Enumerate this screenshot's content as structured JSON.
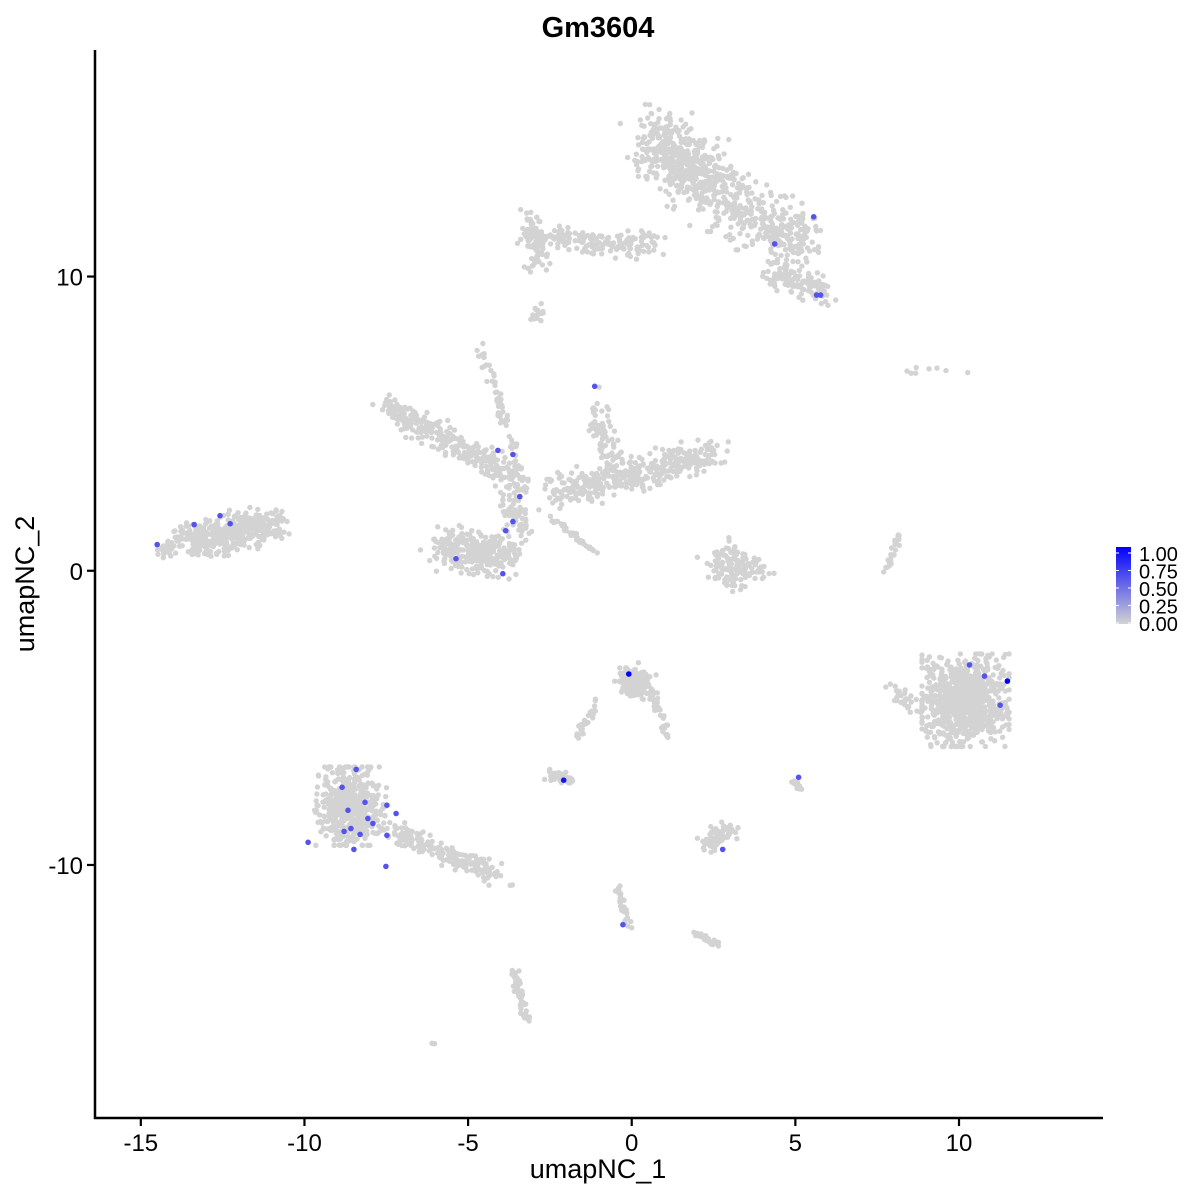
{
  "chart_data": {
    "type": "scatter",
    "title": "Gm3604",
    "xlabel": "umapNC_1",
    "ylabel": "umapNC_2",
    "xlim": [
      -16.4,
      14.4
    ],
    "ylim": [
      -18.6,
      17.7
    ],
    "xticks": [
      -15,
      -10,
      -5,
      0,
      5,
      10
    ],
    "yticks": [
      -10,
      0,
      10
    ],
    "xtick_labels": [
      "-15",
      "-10",
      "-5",
      "0",
      "5",
      "10"
    ],
    "ytick_labels": [
      "-10",
      "0",
      "10"
    ],
    "grid": false,
    "color_low": "#d3d3d3",
    "color_high": "#0000ff",
    "legend": {
      "placement": "right",
      "labels": [
        "1.00",
        "0.75",
        "0.50",
        "0.25",
        "0.00"
      ],
      "values": [
        1,
        0.75,
        0.5,
        0.25,
        0
      ]
    },
    "background_clusters": [
      {
        "from": [
          0.7,
          14.8
        ],
        "to": [
          2.6,
          12.8
        ],
        "spread": [
          0.9,
          1.0
        ],
        "n": 520
      },
      {
        "from": [
          3.0,
          12.5
        ],
        "to": [
          5.4,
          11.0
        ],
        "spread": [
          0.7,
          0.9
        ],
        "n": 260
      },
      {
        "from": [
          4.3,
          10.2
        ],
        "to": [
          5.9,
          9.5
        ],
        "spread": [
          0.5,
          0.5
        ],
        "n": 120
      },
      {
        "from": [
          -3.3,
          11.4
        ],
        "to": [
          0.8,
          11.0
        ],
        "spread": [
          0.35,
          0.4
        ],
        "n": 170
      },
      {
        "from": [
          -3.2,
          11.9
        ],
        "to": [
          -2.8,
          10.4
        ],
        "spread": [
          0.3,
          0.5
        ],
        "n": 70
      },
      {
        "from": [
          -3.0,
          8.9
        ],
        "to": [
          -2.8,
          8.7
        ],
        "spread": [
          0.2,
          0.3
        ],
        "n": 15
      },
      {
        "from": [
          -7.6,
          5.6
        ],
        "to": [
          -3.2,
          3.0
        ],
        "spread": [
          0.4,
          0.4
        ],
        "n": 330
      },
      {
        "from": [
          -4.6,
          7.5
        ],
        "to": [
          -3.5,
          4.0
        ],
        "spread": [
          0.15,
          0.3
        ],
        "n": 50
      },
      {
        "from": [
          -2.5,
          2.6
        ],
        "to": [
          2.5,
          4.0
        ],
        "spread": [
          0.5,
          0.5
        ],
        "n": 380
      },
      {
        "from": [
          -1.2,
          5.9
        ],
        "to": [
          -0.5,
          3.2
        ],
        "spread": [
          0.3,
          0.4
        ],
        "n": 80
      },
      {
        "from": [
          -5.8,
          0.8
        ],
        "to": [
          -3.8,
          0.5
        ],
        "spread": [
          0.65,
          0.65
        ],
        "n": 280
      },
      {
        "from": [
          -3.8,
          2.5
        ],
        "to": [
          -3.2,
          1.2
        ],
        "spread": [
          0.3,
          0.5
        ],
        "n": 60
      },
      {
        "from": [
          -2.5,
          1.8
        ],
        "to": [
          -1.1,
          0.6
        ],
        "spread": [
          0.1,
          0.1
        ],
        "n": 40
      },
      {
        "from": [
          -13.5,
          1.0
        ],
        "to": [
          -11.0,
          1.6
        ],
        "spread": [
          0.6,
          0.5
        ],
        "n": 460
      },
      {
        "from": [
          -14.2,
          0.8
        ],
        "to": [
          -14.2,
          0.8
        ],
        "spread": [
          0.3,
          0.3
        ],
        "n": 30
      },
      {
        "from": [
          2.3,
          0.2
        ],
        "to": [
          4.1,
          0.0
        ],
        "spread": [
          0.3,
          0.5
        ],
        "n": 100
      },
      {
        "from": [
          3.0,
          0.9
        ],
        "to": [
          3.2,
          -0.6
        ],
        "spread": [
          0.3,
          0.3
        ],
        "n": 40
      },
      {
        "from": [
          7.7,
          -0.2
        ],
        "to": [
          8.2,
          1.2
        ],
        "spread": [
          0.08,
          0.1
        ],
        "n": 25
      },
      {
        "from": [
          10.2,
          -4.4
        ],
        "to": [
          10.2,
          -4.4
        ],
        "spread": [
          1.1,
          1.3
        ],
        "n": 900
      },
      {
        "from": [
          7.9,
          -3.9
        ],
        "to": [
          8.6,
          -4.6
        ],
        "spread": [
          0.3,
          0.3
        ],
        "n": 30
      },
      {
        "from": [
          -8.7,
          -8.0
        ],
        "to": [
          -8.5,
          -8.0
        ],
        "spread": [
          0.85,
          1.1
        ],
        "n": 560
      },
      {
        "from": [
          -7.4,
          -8.8
        ],
        "to": [
          -4.0,
          -10.4
        ],
        "spread": [
          0.35,
          0.3
        ],
        "n": 200
      },
      {
        "from": [
          -0.1,
          -3.6
        ],
        "to": [
          0.3,
          -3.9
        ],
        "spread": [
          0.45,
          0.45
        ],
        "n": 170
      },
      {
        "from": [
          0.6,
          -4.2
        ],
        "to": [
          1.1,
          -5.6
        ],
        "spread": [
          0.15,
          0.15
        ],
        "n": 30
      },
      {
        "from": [
          -1.0,
          -4.4
        ],
        "to": [
          -1.7,
          -5.8
        ],
        "spread": [
          0.12,
          0.12
        ],
        "n": 25
      },
      {
        "from": [
          -2.5,
          -6.9
        ],
        "to": [
          -1.9,
          -7.1
        ],
        "spread": [
          0.25,
          0.15
        ],
        "n": 45
      },
      {
        "from": [
          2.3,
          -9.3
        ],
        "to": [
          3.0,
          -8.8
        ],
        "spread": [
          0.35,
          0.3
        ],
        "n": 75
      },
      {
        "from": [
          -0.4,
          -10.8
        ],
        "to": [
          -0.1,
          -12.0
        ],
        "spread": [
          0.1,
          0.15
        ],
        "n": 35
      },
      {
        "from": [
          2.0,
          -12.3
        ],
        "to": [
          2.6,
          -12.7
        ],
        "spread": [
          0.2,
          0.1
        ],
        "n": 25
      },
      {
        "from": [
          -3.6,
          -13.5
        ],
        "to": [
          -3.2,
          -15.3
        ],
        "spread": [
          0.12,
          0.1
        ],
        "n": 60
      },
      {
        "from": [
          5.0,
          -7.1
        ],
        "to": [
          5.1,
          -7.4
        ],
        "spread": [
          0.1,
          0.1
        ],
        "n": 12
      },
      {
        "from": [
          -6.1,
          -16.1
        ],
        "to": [
          -6.0,
          -16.0
        ],
        "spread": [
          0.05,
          0.05
        ],
        "n": 3
      },
      {
        "from": [
          8.5,
          6.8
        ],
        "to": [
          9.9,
          6.8
        ],
        "spread": [
          0.4,
          0.15
        ],
        "n": 8
      }
    ],
    "expressed_points": [
      {
        "x": 5.56,
        "y": 12.03,
        "value": 0.6
      },
      {
        "x": 4.37,
        "y": 11.11,
        "value": 0.6
      },
      {
        "x": 5.65,
        "y": 9.37,
        "value": 0.6
      },
      {
        "x": 5.77,
        "y": 9.37,
        "value": 0.6
      },
      {
        "x": -1.13,
        "y": 6.27,
        "value": 0.6
      },
      {
        "x": -4.09,
        "y": 4.09,
        "value": 0.6
      },
      {
        "x": -3.63,
        "y": 3.95,
        "value": 0.6
      },
      {
        "x": -3.42,
        "y": 2.52,
        "value": 0.6
      },
      {
        "x": -3.63,
        "y": 1.67,
        "value": 0.6
      },
      {
        "x": -3.85,
        "y": 1.36,
        "value": 0.6
      },
      {
        "x": -3.94,
        "y": -0.1,
        "value": 0.6
      },
      {
        "x": -5.37,
        "y": 0.41,
        "value": 0.6
      },
      {
        "x": -12.58,
        "y": 1.87,
        "value": 0.6
      },
      {
        "x": -12.27,
        "y": 1.6,
        "value": 0.6
      },
      {
        "x": -13.37,
        "y": 1.57,
        "value": 0.6
      },
      {
        "x": -14.5,
        "y": 0.89,
        "value": 0.6
      },
      {
        "x": -0.09,
        "y": -3.51,
        "value": 1.0
      },
      {
        "x": -2.08,
        "y": -7.12,
        "value": 0.9
      },
      {
        "x": 10.32,
        "y": -3.2,
        "value": 0.6
      },
      {
        "x": 10.78,
        "y": -3.58,
        "value": 0.6
      },
      {
        "x": 11.48,
        "y": -3.75,
        "value": 1.0
      },
      {
        "x": 11.26,
        "y": -4.57,
        "value": 0.6
      },
      {
        "x": 5.1,
        "y": -7.02,
        "value": 0.6
      },
      {
        "x": 2.78,
        "y": -9.47,
        "value": 0.6
      },
      {
        "x": -0.27,
        "y": -12.03,
        "value": 0.6
      },
      {
        "x": -8.42,
        "y": -6.75,
        "value": 0.6
      },
      {
        "x": -8.85,
        "y": -7.36,
        "value": 0.6
      },
      {
        "x": -8.15,
        "y": -7.87,
        "value": 0.6
      },
      {
        "x": -8.67,
        "y": -8.14,
        "value": 0.6
      },
      {
        "x": -8.06,
        "y": -8.42,
        "value": 0.6
      },
      {
        "x": -7.91,
        "y": -8.59,
        "value": 0.6
      },
      {
        "x": -7.48,
        "y": -7.97,
        "value": 0.6
      },
      {
        "x": -7.2,
        "y": -8.25,
        "value": 0.6
      },
      {
        "x": -8.79,
        "y": -8.86,
        "value": 0.6
      },
      {
        "x": -8.58,
        "y": -8.76,
        "value": 0.6
      },
      {
        "x": -8.3,
        "y": -8.96,
        "value": 0.6
      },
      {
        "x": -7.48,
        "y": -8.99,
        "value": 0.6
      },
      {
        "x": -8.49,
        "y": -9.47,
        "value": 0.6
      },
      {
        "x": -9.89,
        "y": -9.23,
        "value": 0.6
      },
      {
        "x": -7.51,
        "y": -10.05,
        "value": 0.6
      }
    ]
  }
}
